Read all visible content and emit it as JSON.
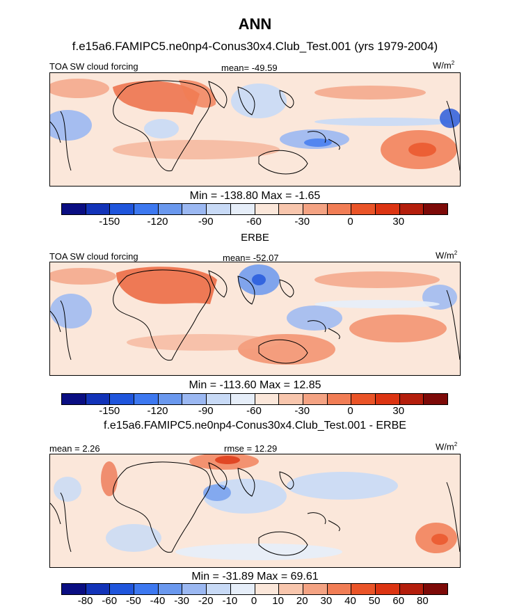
{
  "figure": {
    "title": "ANN",
    "panels": [
      {
        "heading": "f.e15a6.FAMIPC5.ne0np4-Conus30x4.Club_Test.001 (yrs 1979-2004)",
        "left_label": "TOA SW cloud forcing",
        "center_label": "mean= -49.59",
        "units": "W/m",
        "units_exp": "2",
        "stats": "Min = -138.80 Max =  -1.65",
        "colorbar_ticks": [
          "-150",
          "-120",
          "-90",
          "-60",
          "-30",
          "0",
          "30"
        ]
      },
      {
        "heading": "ERBE",
        "left_label": "TOA SW cloud forcing",
        "center_label": "mean= -52.07",
        "units": "W/m",
        "units_exp": "2",
        "stats": "Min = -113.60 Max =  12.85",
        "colorbar_ticks": [
          "-150",
          "-120",
          "-90",
          "-60",
          "-30",
          "0",
          "30"
        ]
      },
      {
        "heading": "f.e15a6.FAMIPC5.ne0np4-Conus30x4.Club_Test.001 - ERBE",
        "left_label": "mean =   2.26",
        "center_label": "rmse =  12.29",
        "units": "W/m",
        "units_exp": "2",
        "stats": "Min = -31.89 Max =  69.61",
        "colorbar_ticks": [
          "-80",
          "-60",
          "-50",
          "-40",
          "-30",
          "-20",
          "-10",
          "0",
          "10",
          "20",
          "30",
          "40",
          "50",
          "60",
          "80"
        ]
      }
    ],
    "colors": {
      "palette": [
        "#0a0e82",
        "#1233b8",
        "#1f55dc",
        "#3d78f0",
        "#6a98ee",
        "#9bb8f2",
        "#c8daf6",
        "#e6eef9",
        "#fbe7da",
        "#f8c6ad",
        "#f4a383",
        "#f17d55",
        "#ea5428",
        "#dc3412",
        "#b41e0c",
        "#7d0a08"
      ],
      "land_outline": "#000000"
    }
  }
}
